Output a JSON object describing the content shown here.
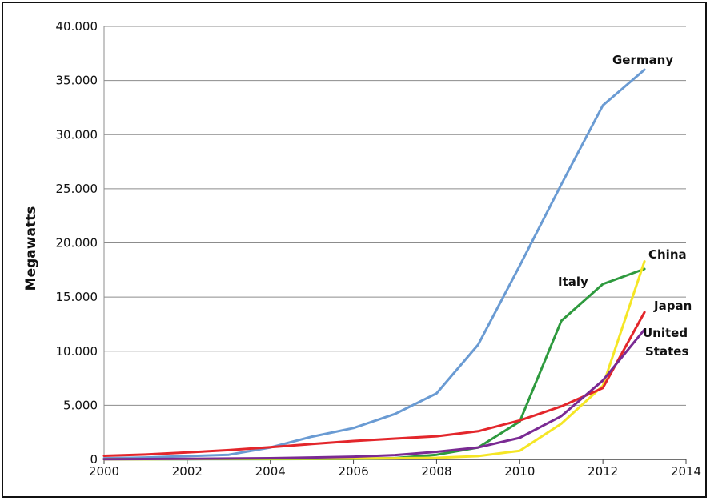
{
  "chart_data": {
    "type": "line",
    "title": "",
    "xlabel": "",
    "ylabel": "Megawatts",
    "xlim": [
      2000,
      2014
    ],
    "ylim": [
      0,
      40000
    ],
    "grid": "horizontal",
    "x_ticks": [
      "2000",
      "2002",
      "2004",
      "2006",
      "2008",
      "2010",
      "2012",
      "2014"
    ],
    "y_ticks": [
      "0",
      "5.000",
      "10.000",
      "15.000",
      "20.000",
      "25.000",
      "30.000",
      "35.000",
      "40.000"
    ],
    "series": [
      {
        "name": "Germany",
        "color": "#6a9bd3",
        "x": [
          2000,
          2001,
          2002,
          2003,
          2004,
          2005,
          2006,
          2007,
          2008,
          2009,
          2010,
          2011,
          2012,
          2013
        ],
        "y": [
          100,
          180,
          300,
          430,
          1100,
          2100,
          2900,
          4200,
          6100,
          10600,
          17900,
          25400,
          32700,
          36000
        ]
      },
      {
        "name": "Italy",
        "color": "#2e9a3e",
        "x": [
          2000,
          2001,
          2002,
          2003,
          2004,
          2005,
          2006,
          2007,
          2008,
          2009,
          2010,
          2011,
          2012,
          2013
        ],
        "y": [
          20,
          20,
          22,
          26,
          30,
          37,
          50,
          120,
          430,
          1100,
          3500,
          12800,
          16200,
          17600
        ]
      },
      {
        "name": "China",
        "color": "#f5e625",
        "x": [
          2000,
          2001,
          2002,
          2003,
          2004,
          2005,
          2006,
          2007,
          2008,
          2009,
          2010,
          2011,
          2012,
          2013
        ],
        "y": [
          20,
          25,
          40,
          50,
          65,
          70,
          80,
          100,
          150,
          300,
          800,
          3300,
          6800,
          18300
        ]
      },
      {
        "name": "Japan",
        "color": "#e3262b",
        "x": [
          2000,
          2001,
          2002,
          2003,
          2004,
          2005,
          2006,
          2007,
          2008,
          2009,
          2010,
          2011,
          2012,
          2013
        ],
        "y": [
          330,
          450,
          640,
          860,
          1130,
          1420,
          1700,
          1920,
          2140,
          2600,
          3600,
          4900,
          6600,
          13600
        ]
      },
      {
        "name": "United States",
        "color": "#7a2a93",
        "x": [
          2000,
          2001,
          2002,
          2003,
          2004,
          2005,
          2006,
          2007,
          2008,
          2009,
          2010,
          2011,
          2012,
          2013
        ],
        "y": [
          20,
          40,
          60,
          80,
          110,
          180,
          250,
          400,
          700,
          1100,
          2000,
          4000,
          7300,
          12000
        ]
      }
    ],
    "annotations": [
      {
        "text": "Germany",
        "series": "Germany"
      },
      {
        "text": "China",
        "series": "China"
      },
      {
        "text": "Italy",
        "series": "Italy"
      },
      {
        "text": "Japan",
        "series": "Japan"
      },
      {
        "text": "United",
        "series": "United States"
      },
      {
        "text": "States",
        "series": "United States"
      }
    ]
  }
}
